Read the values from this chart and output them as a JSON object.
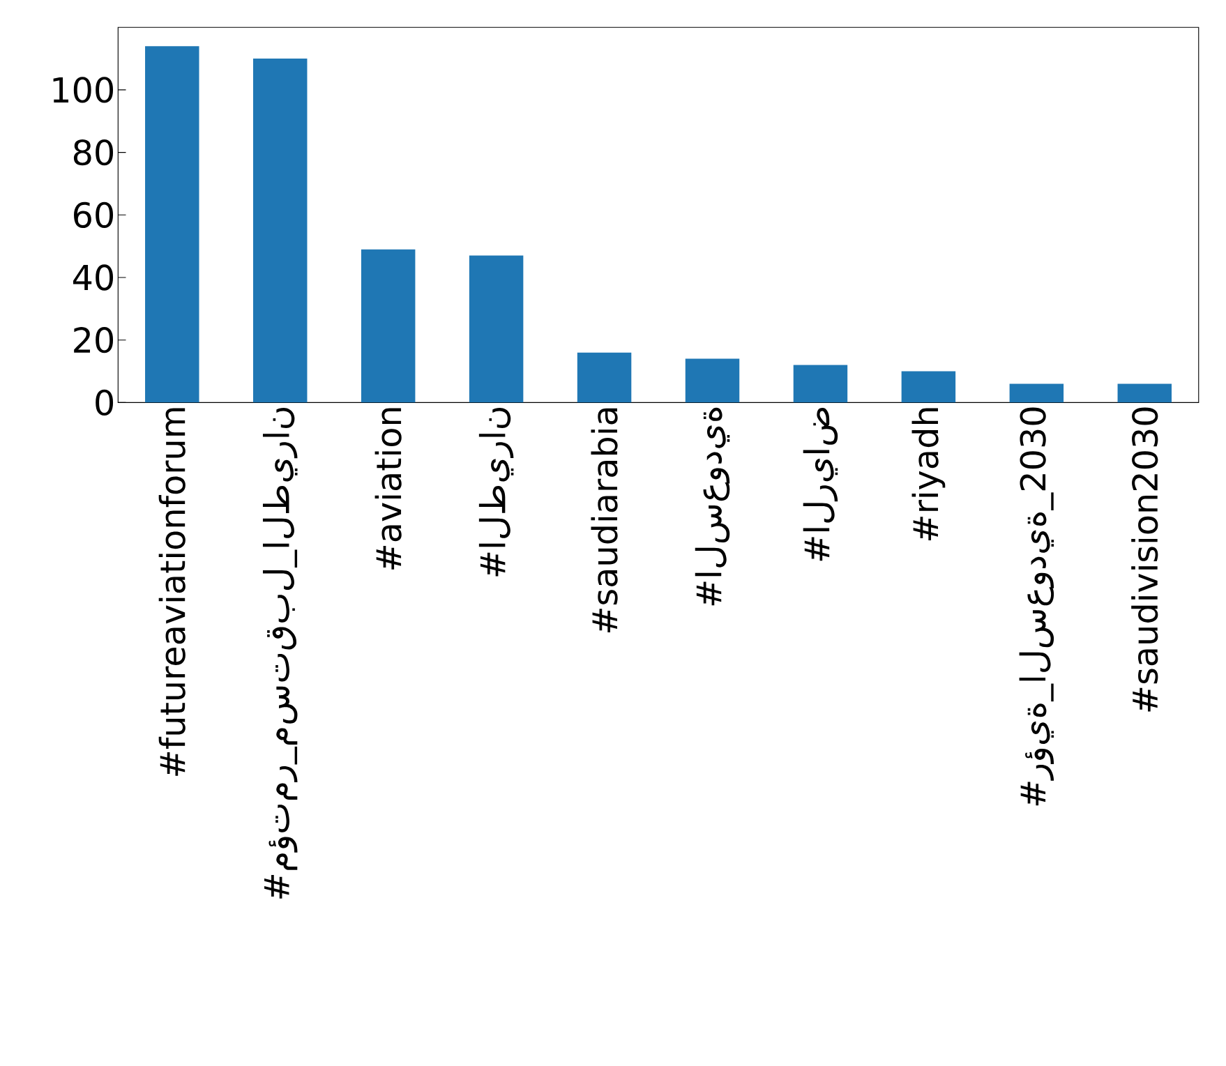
{
  "chart_data": {
    "type": "bar",
    "categories": [
      "#futureaviationforum",
      "#مؤتمر_مستقبل_الطيران",
      "#aviation",
      "#الطيران",
      "#saudiarabia",
      "#السعودية",
      "#الرياض",
      "#riyadh",
      "#رؤية_السعودية_2030",
      "#saudivision2030"
    ],
    "values": [
      114,
      110,
      49,
      47,
      16,
      14,
      12,
      10,
      6,
      6
    ],
    "color": "#1f77b4",
    "ylim": [
      0,
      120
    ],
    "yticks": [
      0,
      20,
      40,
      60,
      80,
      100
    ]
  }
}
